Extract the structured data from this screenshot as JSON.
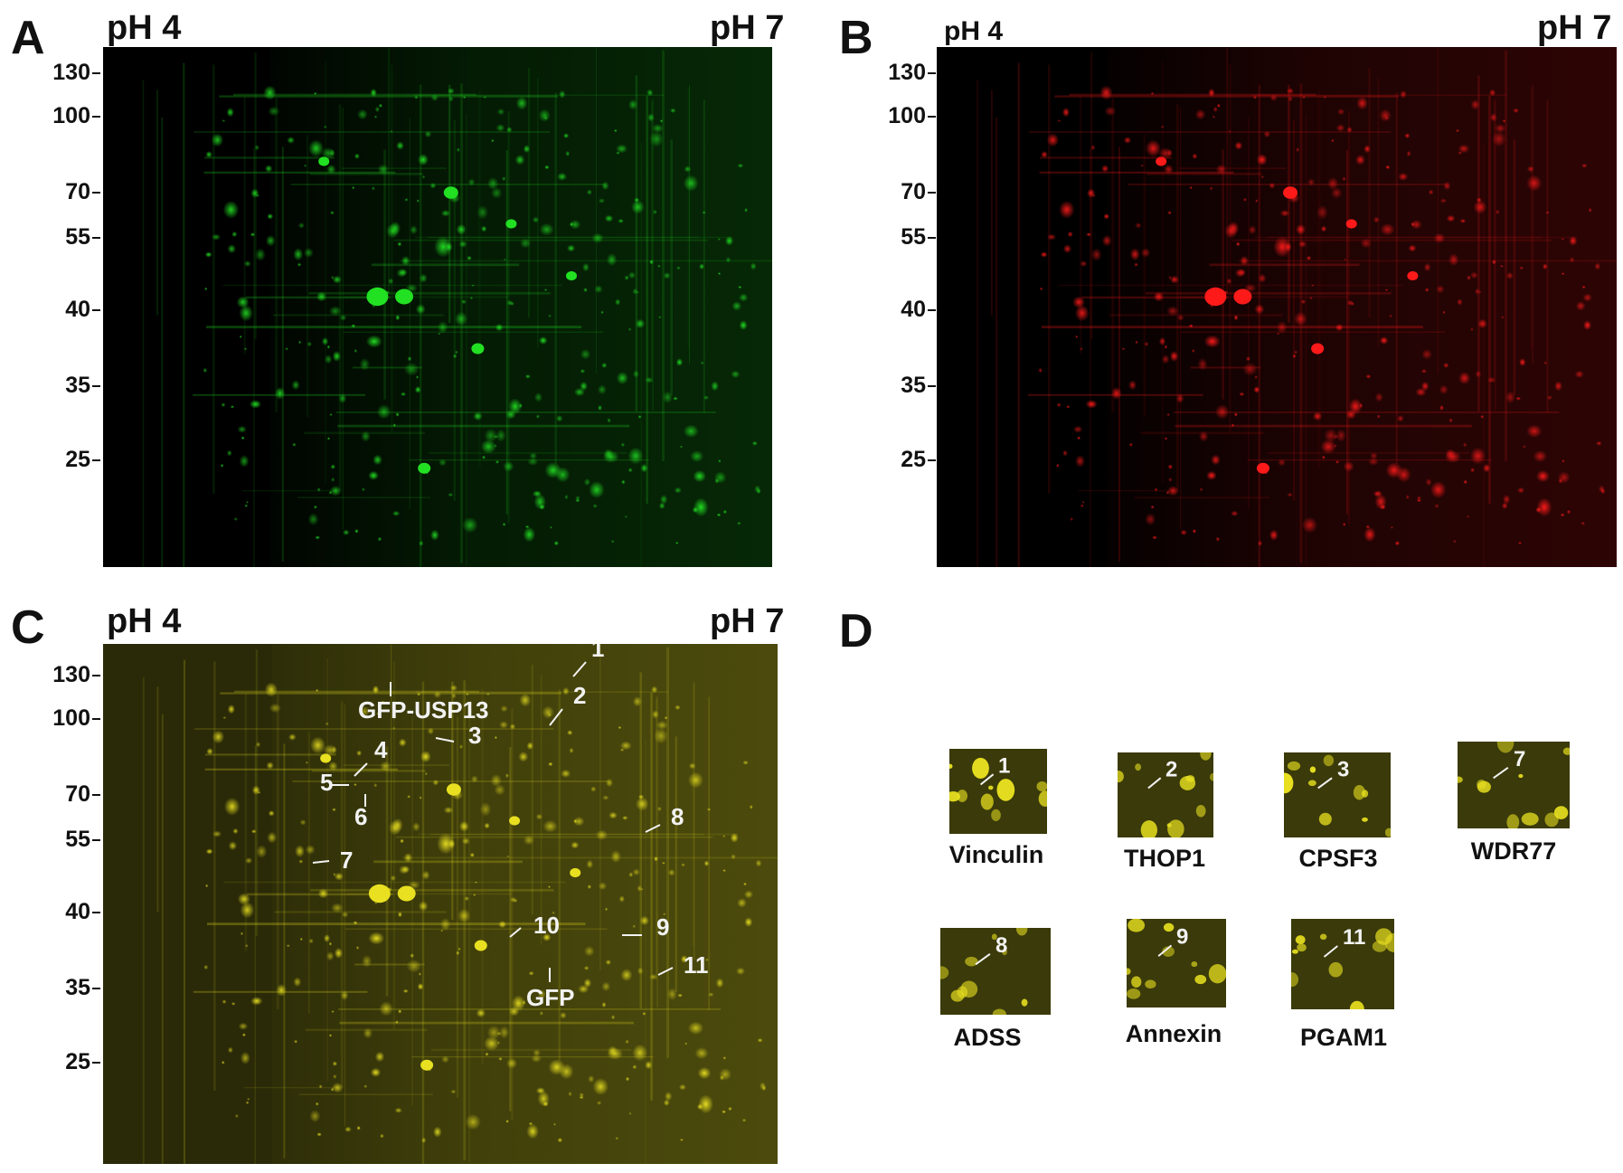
{
  "panels": {
    "A": {
      "letter": "A",
      "ph_left": "pH 4",
      "ph_right": "pH 7",
      "mw": [
        "130",
        "100",
        "70",
        "55",
        "40",
        "35",
        "25"
      ],
      "channel": "green"
    },
    "B": {
      "letter": "B",
      "ph_left": "pH 4",
      "ph_right": "pH 7",
      "mw": [
        "130",
        "100",
        "70",
        "55",
        "40",
        "35",
        "25"
      ],
      "channel": "red"
    },
    "C": {
      "letter": "C",
      "ph_left": "pH 4",
      "ph_right": "pH 7",
      "mw": [
        "130",
        "100",
        "70",
        "55",
        "40",
        "35",
        "25"
      ],
      "channel": "overlay",
      "annotations": [
        "1",
        "2",
        "3",
        "4",
        "5",
        "6",
        "7",
        "8",
        "9",
        "10",
        "11",
        "GFP-USP13",
        "GFP"
      ]
    },
    "D": {
      "letter": "D",
      "insets": [
        {
          "num": "1",
          "protein": "Vinculin"
        },
        {
          "num": "2",
          "protein": "THOP1"
        },
        {
          "num": "3",
          "protein": "CPSF3"
        },
        {
          "num": "7",
          "protein": "WDR77"
        },
        {
          "num": "8",
          "protein": "ADSS"
        },
        {
          "num": "9",
          "protein": "Annexin"
        },
        {
          "num": "11",
          "protein": "PGAM1"
        }
      ]
    }
  },
  "colors": {
    "green": "#22e022",
    "red": "#ff1a1a",
    "yellow": "#e8e020",
    "background": "#000000",
    "annotation": "#f2f2f2"
  }
}
